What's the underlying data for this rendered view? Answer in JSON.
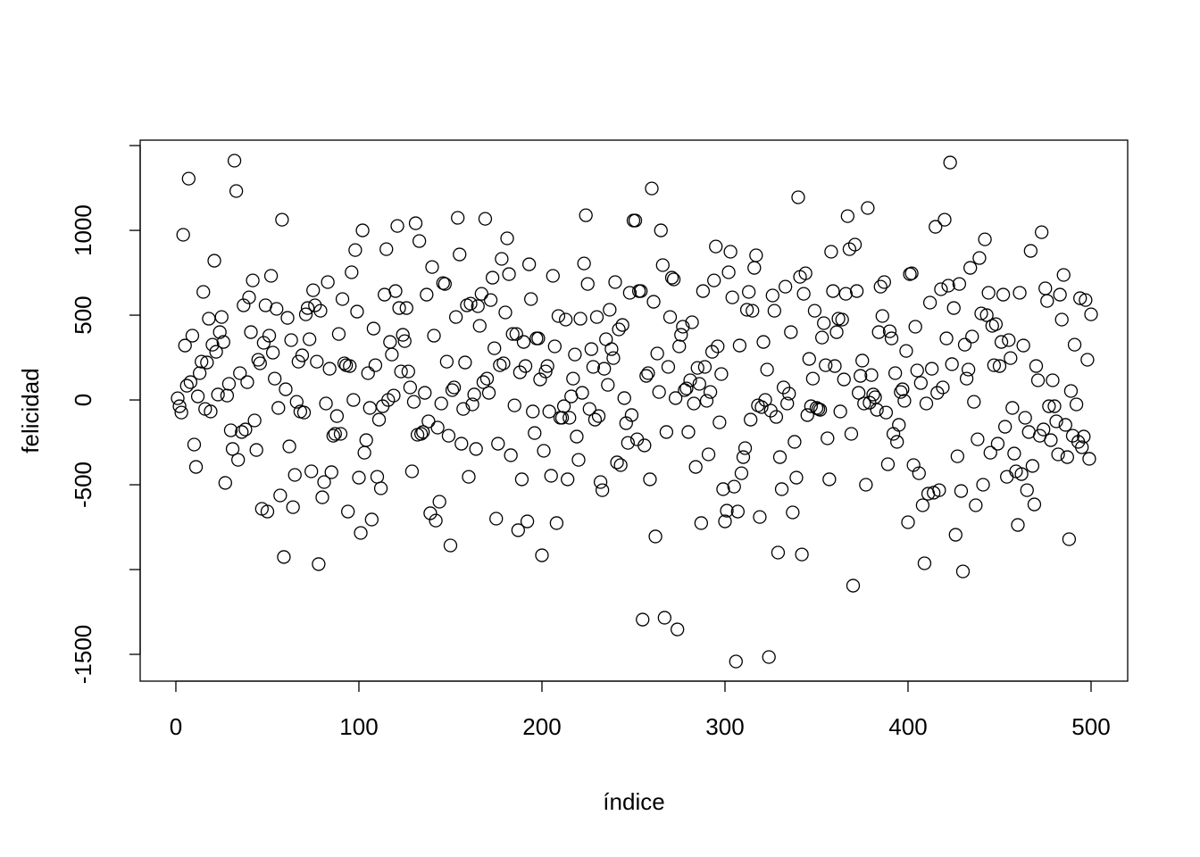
{
  "chart_data": {
    "type": "scatter",
    "x_label": "índice",
    "y_label": "felicidad",
    "xlim": [
      -19.5,
      520
    ],
    "ylim": [
      -1658,
      1532
    ],
    "xticks": [
      0,
      100,
      200,
      300,
      400,
      500
    ],
    "yticks": [
      -1500,
      {
        "value": -1000,
        "label": null
      },
      -500,
      0,
      500,
      1000,
      {
        "value": 1500,
        "label": null
      }
    ],
    "color": "#000000",
    "x": [
      1,
      2,
      3,
      4,
      5,
      6,
      7,
      8,
      9,
      10,
      11,
      12,
      13,
      14,
      15,
      16,
      17,
      18,
      19,
      20,
      21,
      22,
      23,
      24,
      25,
      26,
      27,
      28,
      29,
      30,
      31,
      32,
      33,
      34,
      35,
      36,
      37,
      38,
      39,
      40,
      41,
      42,
      43,
      44,
      45,
      46,
      47,
      48,
      49,
      50,
      51,
      52,
      53,
      54,
      55,
      56,
      57,
      58,
      59,
      60,
      61,
      62,
      63,
      64,
      65,
      66,
      67,
      68,
      69,
      70,
      71,
      72,
      73,
      74,
      75,
      76,
      77,
      78,
      79,
      80,
      81,
      82,
      83,
      84,
      85,
      86,
      87,
      88,
      89,
      90,
      91,
      92,
      93,
      94,
      95,
      96,
      97,
      98,
      99,
      100,
      101,
      102,
      103,
      104,
      105,
      106,
      107,
      108,
      109,
      110,
      111,
      112,
      113,
      114,
      115,
      116,
      117,
      118,
      119,
      120,
      121,
      122,
      123,
      124,
      125,
      126,
      127,
      128,
      129,
      130,
      131,
      132,
      133,
      134,
      135,
      136,
      137,
      138,
      139,
      140,
      141,
      142,
      143,
      144,
      145,
      146,
      147,
      148,
      149,
      150,
      151,
      152,
      153,
      154,
      155,
      156,
      157,
      158,
      159,
      160,
      161,
      162,
      163,
      164,
      165,
      166,
      167,
      168,
      169,
      170,
      171,
      172,
      173,
      174,
      175,
      176,
      177,
      178,
      179,
      180,
      181,
      182,
      183,
      184,
      185,
      186,
      187,
      188,
      189,
      190,
      191,
      192,
      193,
      194,
      195,
      196,
      197,
      198,
      199,
      200,
      201,
      202,
      203,
      204,
      205,
      206,
      207,
      208,
      209,
      210,
      211,
      212,
      213,
      214,
      215,
      216,
      217,
      218,
      219,
      220,
      221,
      222,
      223,
      224,
      225,
      226,
      227,
      228,
      229,
      230,
      231,
      232,
      233,
      234,
      235,
      236,
      237,
      238,
      239,
      240,
      241,
      242,
      243,
      244,
      245,
      246,
      247,
      248,
      249,
      250,
      251,
      252,
      253,
      254,
      255,
      256,
      257,
      258,
      259,
      260,
      261,
      262,
      263,
      264,
      265,
      266,
      267,
      268,
      269,
      270,
      271,
      272,
      273,
      274,
      275,
      276,
      277,
      278,
      279,
      280,
      281,
      282,
      283,
      284,
      285,
      286,
      287,
      288,
      289,
      290,
      291,
      292,
      293,
      294,
      295,
      296,
      297,
      298,
      299,
      300,
      301,
      302,
      303,
      304,
      305,
      306,
      307,
      308,
      309,
      310,
      311,
      312,
      313,
      314,
      315,
      316,
      317,
      318,
      319,
      320,
      321,
      322,
      323,
      324,
      325,
      326,
      327,
      328,
      329,
      330,
      331,
      332,
      333,
      334,
      335,
      336,
      337,
      338,
      339,
      340,
      341,
      342,
      343,
      344,
      345,
      346,
      347,
      348,
      349,
      350,
      351,
      352,
      353,
      354,
      355,
      356,
      357,
      358,
      359,
      360,
      361,
      362,
      363,
      364,
      365,
      366,
      367,
      368,
      369,
      370,
      371,
      372,
      373,
      374,
      375,
      376,
      377,
      378,
      379,
      380,
      381,
      382,
      383,
      384,
      385,
      386,
      387,
      388,
      389,
      390,
      391,
      392,
      393,
      394,
      395,
      396,
      397,
      398,
      399,
      400,
      401,
      402,
      403,
      404,
      405,
      406,
      407,
      408,
      409,
      410,
      411,
      412,
      413,
      414,
      415,
      416,
      417,
      418,
      419,
      420,
      421,
      422,
      423,
      424,
      425,
      426,
      427,
      428,
      429,
      430,
      431,
      432,
      433,
      434,
      435,
      436,
      437,
      438,
      439,
      440,
      441,
      442,
      443,
      444,
      445,
      446,
      447,
      448,
      449,
      450,
      451,
      452,
      453,
      454,
      455,
      456,
      457,
      458,
      459,
      460,
      461,
      462,
      463,
      464,
      465,
      466,
      467,
      468,
      469,
      470,
      471,
      472,
      473,
      474,
      475,
      476,
      477,
      478,
      479,
      480,
      481,
      482,
      483,
      484,
      485,
      486,
      487,
      488,
      489,
      490,
      491,
      492,
      493,
      494,
      495,
      496,
      497,
      498,
      499,
      500
    ],
    "values": [
      10,
      -37,
      -74,
      974,
      321,
      84,
      1305,
      105,
      379,
      -263,
      -395,
      21,
      158,
      226,
      637,
      -53,
      221,
      479,
      -68,
      326,
      821,
      284,
      32,
      400,
      489,
      342,
      -489,
      26,
      95,
      -179,
      -289,
      1411,
      1232,
      -353,
      158,
      -189,
      558,
      -174,
      105,
      605,
      400,
      705,
      -121,
      -295,
      237,
      216,
      -642,
      337,
      558,
      -658,
      379,
      732,
      279,
      126,
      537,
      -47,
      -563,
      1063,
      -926,
      63,
      484,
      -274,
      353,
      -632,
      -442,
      -11,
      226,
      -68,
      263,
      -74,
      505,
      542,
      358,
      -421,
      647,
      558,
      226,
      -968,
      526,
      -574,
      -484,
      -21,
      695,
      184,
      -426,
      -211,
      -200,
      -95,
      389,
      -200,
      595,
      216,
      205,
      -658,
      200,
      753,
      0,
      884,
      521,
      -458,
      -784,
      1000,
      -311,
      -237,
      158,
      -47,
      -705,
      421,
      205,
      -453,
      -116,
      -521,
      -37,
      621,
      889,
      0,
      342,
      268,
      26,
      642,
      1026,
      542,
      168,
      384,
      347,
      542,
      168,
      74,
      -421,
      -11,
      1042,
      -205,
      937,
      -200,
      -189,
      42,
      621,
      -126,
      -668,
      784,
      379,
      -711,
      -163,
      -600,
      -21,
      689,
      684,
      226,
      -211,
      -858,
      58,
      74,
      489,
      1074,
      858,
      -258,
      -53,
      221,
      558,
      -453,
      568,
      -26,
      32,
      -289,
      553,
      437,
      626,
      105,
      1068,
      126,
      42,
      589,
      721,
      305,
      -700,
      -258,
      205,
      832,
      216,
      516,
      953,
      742,
      -326,
      389,
      -32,
      389,
      -768,
      163,
      -468,
      342,
      200,
      -716,
      800,
      595,
      -68,
      -195,
      363,
      363,
      121,
      -916,
      -300,
      168,
      200,
      -68,
      -447,
      732,
      316,
      -726,
      495,
      -105,
      -105,
      -37,
      474,
      -468,
      -105,
      21,
      126,
      268,
      -216,
      -353,
      479,
      42,
      805,
      1089,
      684,
      -53,
      300,
      195,
      -116,
      489,
      -95,
      -484,
      -532,
      184,
      358,
      89,
      532,
      300,
      247,
      695,
      -368,
      416,
      -384,
      442,
      11,
      -137,
      -253,
      632,
      -89,
      1058,
      1058,
      -232,
      642,
      642,
      -1295,
      -268,
      142,
      158,
      -468,
      1247,
      579,
      -805,
      274,
      47,
      1000,
      795,
      -1284,
      -189,
      195,
      489,
      721,
      711,
      11,
      -1353,
      316,
      384,
      432,
      58,
      68,
      -189,
      116,
      458,
      -21,
      -395,
      189,
      95,
      -726,
      642,
      195,
      -5,
      -321,
      47,
      284,
      705,
      905,
      316,
      -132,
      153,
      -526,
      -716,
      -653,
      753,
      874,
      605,
      -511,
      -1542,
      -658,
      321,
      -432,
      -337,
      -284,
      532,
      637,
      -116,
      526,
      779,
      853,
      -32,
      -690,
      -42,
      342,
      0,
      179,
      -1516,
      -63,
      616,
      526,
      -100,
      -900,
      -337,
      -526,
      74,
      668,
      -21,
      37,
      400,
      -663,
      -247,
      -458,
      1195,
      726,
      -911,
      626,
      747,
      -89,
      242,
      -37,
      126,
      526,
      -47,
      -53,
      -58,
      368,
      453,
      205,
      -226,
      -468,
      874,
      642,
      200,
      400,
      479,
      -68,
      474,
      121,
      626,
      1084,
      889,
      -200,
      -1095,
      916,
      642,
      42,
      142,
      232,
      -21,
      -500,
      1132,
      -16,
      147,
      32,
      16,
      -58,
      400,
      668,
      495,
      695,
      -74,
      -379,
      405,
      363,
      -200,
      158,
      -247,
      -147,
      47,
      63,
      -5,
      289,
      -721,
      742,
      747,
      -384,
      432,
      174,
      -432,
      100,
      -621,
      -963,
      -21,
      -553,
      574,
      184,
      -547,
      1021,
      42,
      -532,
      653,
      74,
      1063,
      363,
      674,
      1400,
      211,
      542,
      -795,
      -332,
      684,
      -537,
      -1011,
      326,
      126,
      179,
      779,
      374,
      -11,
      -621,
      -232,
      837,
      510,
      -500,
      947,
      500,
      632,
      -311,
      437,
      205,
      447,
      -258,
      200,
      342,
      621,
      -158,
      -453,
      353,
      247,
      -47,
      -316,
      -421,
      -737,
      632,
      -437,
      321,
      -105,
      -532,
      -189,
      879,
      -389,
      -616,
      200,
      116,
      -211,
      989,
      -174,
      658,
      584,
      -37,
      -237,
      116,
      -37,
      -126,
      -321,
      621,
      474,
      737,
      -147,
      -337,
      -821,
      53,
      -211,
      326,
      -26,
      -247,
      600,
      -279,
      -216,
      589,
      237,
      -347,
      505
    ]
  }
}
